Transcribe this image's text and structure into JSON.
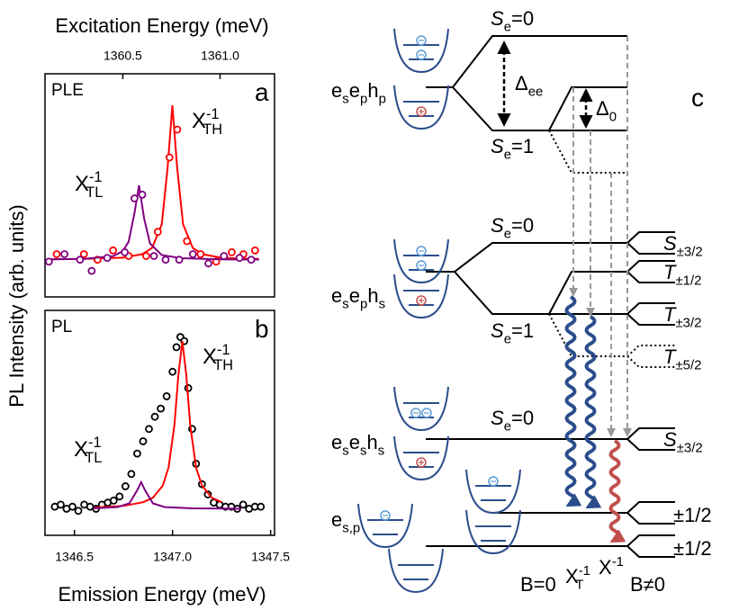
{
  "figure": {
    "ylabel": "PL Intensity (arb. units)"
  },
  "chart_data": [
    {
      "type": "line",
      "title": "PLE",
      "panel_label": "a",
      "xlabel": "Excitation Energy (meV)",
      "xaxis_position": "top",
      "xlim": [
        1360.1,
        1361.28
      ],
      "xticks": [
        1360.5,
        {
          "value": 1361.0,
          "label": "1361.0"
        }
      ],
      "ylim": [
        -0.2,
        1.0
      ],
      "series": [
        {
          "label": [
            {
              "t": "X",
              "sup": "-1",
              "sub": "TH"
            }
          ],
          "color": "#ff0000",
          "fit": {
            "x": [
              1360.12,
              1360.3,
              1360.5,
              1360.6,
              1360.65,
              1360.7,
              1360.73,
              1360.755,
              1360.78,
              1360.81,
              1360.86,
              1360.91,
              1361.0,
              1361.1,
              1361.2
            ],
            "values": [
              0.002,
              0.004,
              0.011,
              0.03,
              0.063,
              0.19,
              0.49,
              0.83,
              0.49,
              0.19,
              0.063,
              0.03,
              0.012,
              0.006,
              0.004
            ]
          },
          "points": {
            "x": [
              1360.16,
              1360.3,
              1360.37,
              1360.45,
              1360.53,
              1360.62,
              1360.68,
              1360.74,
              1360.78,
              1360.83,
              1360.9,
              1360.98,
              1361.06,
              1361.12,
              1361.18
            ],
            "values": [
              0.03,
              0.03,
              0.0,
              0.05,
              0.02,
              0.02,
              0.15,
              0.55,
              0.7,
              0.1,
              0.03,
              -0.01,
              0.04,
              0.03,
              0.05
            ]
          }
        },
        {
          "label": [
            {
              "t": "X",
              "sup": "-1",
              "sub": "TL"
            }
          ],
          "color": "#800080",
          "fit": {
            "x": [
              1360.12,
              1360.3,
              1360.45,
              1360.5,
              1360.53,
              1360.56,
              1360.583,
              1360.61,
              1360.64,
              1360.7,
              1360.8,
              1361.0,
              1361.2
            ],
            "values": [
              0.002,
              0.004,
              0.019,
              0.046,
              0.097,
              0.25,
              0.4,
              0.22,
              0.087,
              0.025,
              0.008,
              0.002,
              0.001
            ]
          },
          "points": {
            "x": [
              1360.12,
              1360.2,
              1360.28,
              1360.34,
              1360.42,
              1360.51,
              1360.56,
              1360.6,
              1360.66,
              1360.72,
              1360.79,
              1360.86,
              1360.94,
              1361.02,
              1361.1,
              1361.16
            ],
            "values": [
              -0.01,
              0.03,
              0.0,
              -0.06,
              0.01,
              0.04,
              0.33,
              0.35,
              0.02,
              0.0,
              0.0,
              0.03,
              -0.02,
              0.02,
              0.01,
              0.0
            ]
          }
        }
      ]
    },
    {
      "type": "line",
      "title": "PL",
      "panel_label": "b",
      "xlabel": "Emission Energy (meV)",
      "xaxis_position": "bottom",
      "xlim": [
        1346.35,
        1347.52
      ],
      "xticks": [
        1346.5,
        {
          "value": 1347.0,
          "label": "1347.0"
        },
        1347.5
      ],
      "ylim": [
        -0.1,
        1.0
      ],
      "series": [
        {
          "color": "#000000",
          "points": {
            "x": [
              1346.4,
              1346.43,
              1346.46,
              1346.49,
              1346.52,
              1346.55,
              1346.58,
              1346.61,
              1346.64,
              1346.67,
              1346.7,
              1346.73,
              1346.76,
              1346.79,
              1346.82,
              1346.85,
              1346.88,
              1346.91,
              1346.94,
              1346.97,
              1347.0,
              1347.02,
              1347.04,
              1347.06,
              1347.08,
              1347.1,
              1347.12,
              1347.15,
              1347.18,
              1347.21,
              1347.24,
              1347.27,
              1347.3,
              1347.33,
              1347.36,
              1347.39,
              1347.42,
              1347.45
            ],
            "values": [
              0.04,
              0.05,
              0.03,
              0.04,
              0.02,
              0.05,
              0.04,
              0.03,
              0.05,
              0.06,
              0.07,
              0.09,
              0.14,
              0.2,
              0.3,
              0.36,
              0.42,
              0.48,
              0.52,
              0.58,
              0.7,
              0.82,
              0.87,
              0.85,
              0.62,
              0.42,
              0.25,
              0.15,
              0.1,
              0.06,
              0.05,
              0.04,
              0.04,
              0.03,
              0.05,
              0.03,
              0.04,
              0.04
            ]
          }
        },
        {
          "label": [
            {
              "t": "X",
              "sup": "-1",
              "sub": "TH"
            }
          ],
          "color": "#ff0000",
          "fit": {
            "x": [
              1346.6,
              1346.75,
              1346.85,
              1346.9,
              1346.95,
              1346.98,
              1347.01,
              1347.03,
              1347.05,
              1347.07,
              1347.09,
              1347.12,
              1347.15,
              1347.2,
              1347.25
            ],
            "values": [
              0.036,
              0.044,
              0.062,
              0.084,
              0.143,
              0.232,
              0.44,
              0.686,
              0.85,
              0.686,
              0.44,
              0.232,
              0.143,
              0.084,
              0.062
            ]
          }
        },
        {
          "label": [
            {
              "t": "X",
              "sup": "-1",
              "sub": "TL"
            }
          ],
          "color": "#800080",
          "fit": {
            "x": [
              1346.6,
              1346.72,
              1346.78,
              1346.82,
              1346.84,
              1346.86,
              1346.9,
              1346.96,
              1347.1,
              1347.25,
              1347.35
            ],
            "values": [
              0.032,
              0.038,
              0.056,
              0.12,
              0.16,
              0.12,
              0.056,
              0.038,
              0.032,
              0.031,
              0.03
            ]
          }
        }
      ]
    }
  ],
  "diagram": {
    "panel_label": "c",
    "configurations": [
      [
        {
          "t": "e",
          "sub": "s"
        },
        {
          "t": "e",
          "sub": "p"
        },
        {
          "t": "h",
          "sub": "p"
        }
      ],
      [
        {
          "t": "e",
          "sub": "s"
        },
        {
          "t": "e",
          "sub": "p"
        },
        {
          "t": "h",
          "sub": "s"
        }
      ],
      [
        {
          "t": "e",
          "sub": "s"
        },
        {
          "t": "e",
          "sub": "s"
        },
        {
          "t": "h",
          "sub": "s"
        }
      ],
      [
        {
          "t": "e",
          "sub": "s,p"
        }
      ]
    ],
    "spin_states": [
      [
        {
          "t": "S",
          "sub": "e",
          "italic": true
        },
        {
          "t": "=0"
        }
      ],
      [
        {
          "t": "S",
          "sub": "e",
          "italic": true
        },
        {
          "t": "=1"
        }
      ],
      [
        {
          "t": "S",
          "sub": "e",
          "italic": true
        },
        {
          "t": "=0"
        }
      ],
      [
        {
          "t": "S",
          "sub": "e",
          "italic": true
        },
        {
          "t": "=1"
        }
      ],
      [
        {
          "t": "S",
          "sub": "e",
          "italic": true
        },
        {
          "t": "=0"
        }
      ]
    ],
    "splittings": [
      [
        {
          "t": "Δ",
          "sub": "ee"
        }
      ],
      [
        {
          "t": "Δ",
          "sub": "0"
        }
      ]
    ],
    "zeeman_states": [
      [
        {
          "t": "S",
          "sub": "±3/2",
          "italic": true
        }
      ],
      [
        {
          "t": "T",
          "sub": "±1/2",
          "italic": true
        }
      ],
      [
        {
          "t": "T",
          "sub": "±3/2",
          "italic": true
        }
      ],
      [
        {
          "t": "T",
          "sub": "±5/2",
          "italic": true
        }
      ],
      [
        {
          "t": "S",
          "sub": "±3/2",
          "italic": true
        }
      ],
      [
        {
          "t": "±1/2"
        }
      ],
      [
        {
          "t": "±1/2"
        }
      ]
    ],
    "transitions": [
      {
        "label": [
          {
            "t": "X",
            "sup": "-1",
            "sub": "T"
          }
        ],
        "color": "#2b4d8c"
      },
      {
        "label": [
          {
            "t": "X",
            "sup": "-1"
          }
        ],
        "color": "#c0504d"
      }
    ],
    "fields": [
      "B=0",
      "B≠0"
    ]
  }
}
